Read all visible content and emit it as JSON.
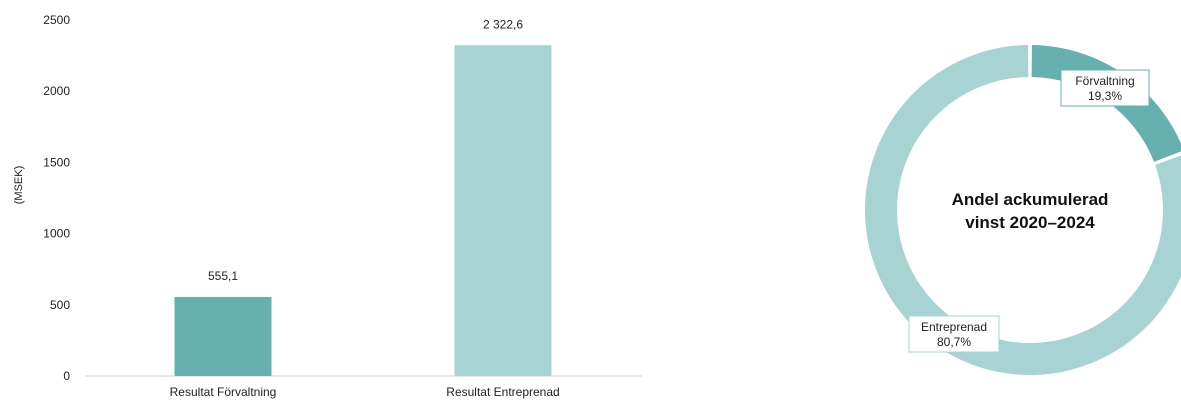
{
  "colors": {
    "forvaltning": "#66b0b0",
    "entreprenad": "#a8d3d3",
    "axis": "#cccccc"
  },
  "chart_data": [
    {
      "type": "bar",
      "ylabel": "(MSEK)",
      "ylim": [
        0,
        2500
      ],
      "yticks": [
        "0",
        "500",
        "1000",
        "1500",
        "2000",
        "2500"
      ],
      "ytick_values": [
        0,
        500,
        1000,
        1500,
        2000,
        2500
      ],
      "categories": [
        "Resultat Förvaltning",
        "Resultat Entreprenad"
      ],
      "values": [
        555.1,
        2322.6
      ],
      "value_labels": [
        "555,1",
        "2 322,6"
      ],
      "grid": false,
      "legend": "none"
    },
    {
      "type": "pie",
      "donut": true,
      "center_title_lines": [
        "Andel ackumulerad",
        "vinst 2020–2024"
      ],
      "slices": [
        {
          "label": "Förvaltning",
          "value": 19.3,
          "value_label": "19,3%"
        },
        {
          "label": "Entreprenad",
          "value": 80.7,
          "value_label": "80,7%"
        }
      ]
    }
  ]
}
